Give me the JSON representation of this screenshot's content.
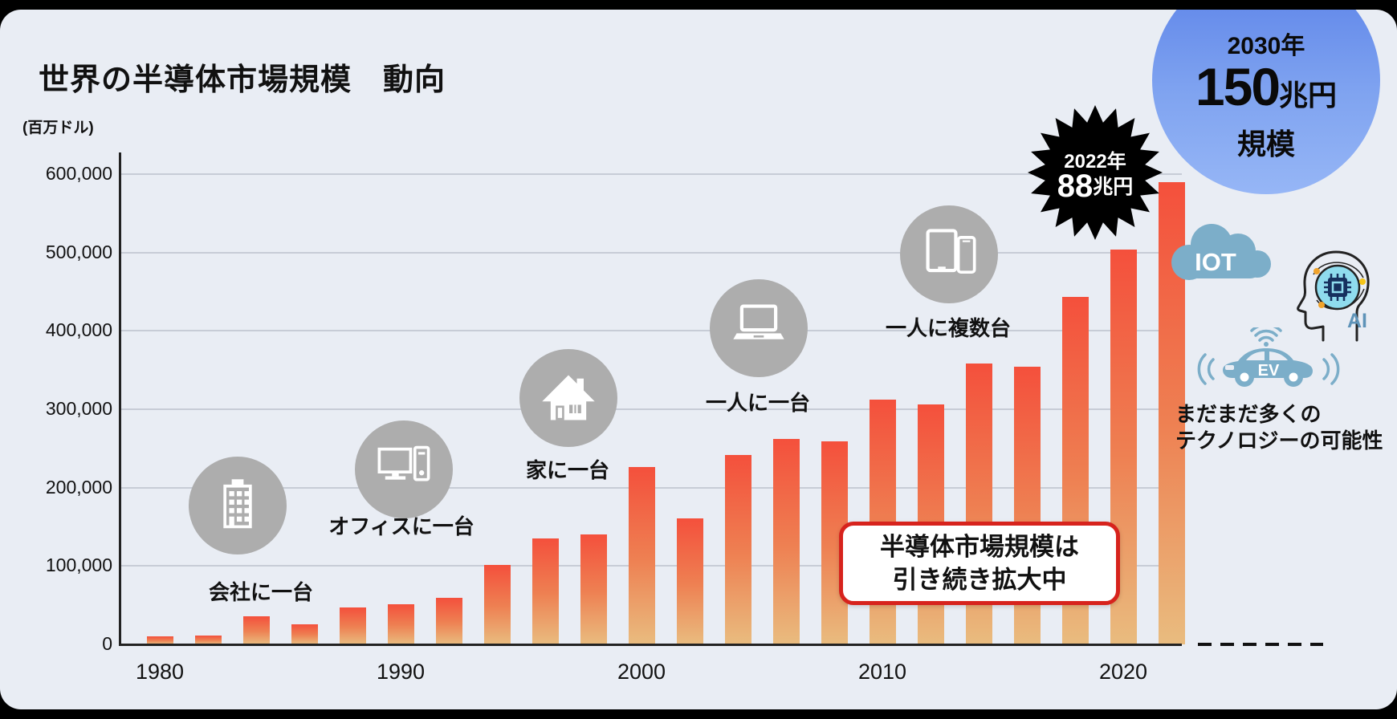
{
  "header": {
    "title": "世界の半導体市場規模　動向"
  },
  "chart_data": {
    "type": "bar",
    "title": "世界の半導体市場規模 動向",
    "ylabel": "(百万ドル)",
    "xlabel": "",
    "x": [
      1980,
      1982,
      1984,
      1986,
      1988,
      1990,
      1992,
      1994,
      1996,
      1998,
      2000,
      2002,
      2004,
      2006,
      2008,
      2010,
      2012,
      2014,
      2016,
      2018,
      2020,
      2022
    ],
    "values": [
      10000,
      11000,
      36000,
      26000,
      47000,
      51000,
      59000,
      101000,
      135000,
      140000,
      226000,
      161000,
      242000,
      262000,
      259000,
      312000,
      306000,
      358000,
      354000,
      443000,
      504000,
      590000
    ],
    "x_tick_labels": [
      "1980",
      "1990",
      "2000",
      "2010",
      "2020"
    ],
    "y_ticks": [
      0,
      100000,
      200000,
      300000,
      400000,
      500000,
      600000
    ],
    "ylim": [
      0,
      600000
    ],
    "grid": true,
    "legend": "none",
    "bar_color_top": "#F4503C",
    "bar_color_bottom": "#E9BC7F"
  },
  "milestones": [
    {
      "label": "会社に一台",
      "icon": "building-icon"
    },
    {
      "label": "オフィスに一台",
      "icon": "desktop-computer-icon"
    },
    {
      "label": "家に一台",
      "icon": "house-icon"
    },
    {
      "label": "一人に一台",
      "icon": "laptop-icon"
    },
    {
      "label": "一人に複数台",
      "icon": "tablet-phone-icon"
    }
  ],
  "badge_2022": {
    "year": "2022年",
    "value": "88",
    "unit": "兆円"
  },
  "target_2030": {
    "year": "2030年",
    "value": "150",
    "unit": "兆円",
    "scale": "規模"
  },
  "tech": {
    "iot": "IOT",
    "ai": "AI",
    "ev": "EV"
  },
  "future_note": {
    "line1": "まだまだ多くの",
    "line2": "テクノロジーの可能性"
  },
  "callout": {
    "line1": "半導体市場規模は",
    "line2": "引き続き拡大中"
  },
  "colors": {
    "background": "#E9EDF4",
    "accent_red": "#D7231D",
    "badge_black": "#000000",
    "target_blue": "#5A81E8",
    "icon_gray": "#ADADAD",
    "tech_blue": "#7CAEC9",
    "ai_cyan": "#8FDCEE"
  }
}
